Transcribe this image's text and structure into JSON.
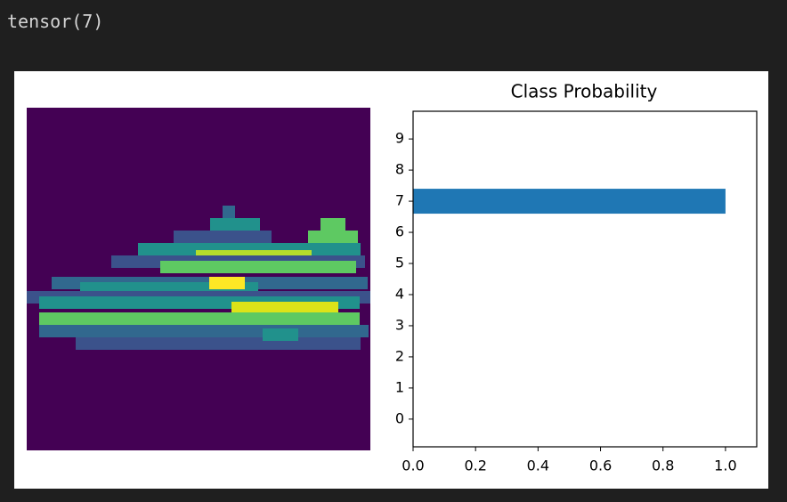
{
  "output_text": "tensor(7)",
  "chart_data": {
    "type": "barh",
    "title": "Class Probability",
    "categories": [
      "0",
      "1",
      "2",
      "3",
      "4",
      "5",
      "6",
      "7",
      "8",
      "9"
    ],
    "values": [
      0,
      0,
      0,
      0,
      0,
      0,
      0,
      1,
      0,
      0
    ],
    "color": "#1f77b4",
    "xlim": [
      0,
      1.1
    ],
    "xticks": [
      {
        "value": 0,
        "label": "0.0"
      },
      {
        "value": 0.2,
        "label": "0.2"
      },
      {
        "value": 0.4,
        "label": "0.4"
      },
      {
        "value": 0.6,
        "label": "0.6"
      },
      {
        "value": 0.8,
        "label": "0.8"
      },
      {
        "value": 1,
        "label": "1.0"
      }
    ],
    "ylim": [
      -0.89,
      9.89
    ]
  }
}
